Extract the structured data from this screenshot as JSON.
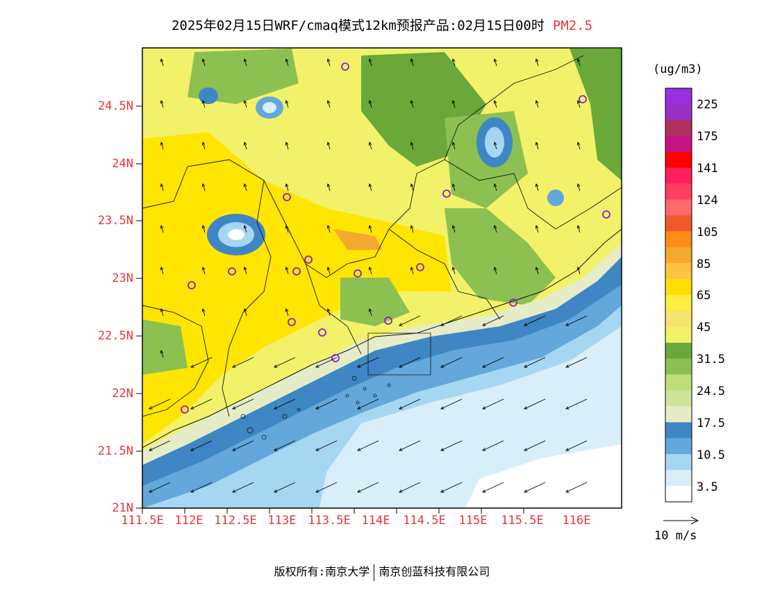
{
  "header": {
    "title": "2025年02月15日WRF/cmaq模式12km预报产品:02月15日00时",
    "pollutant": "PM2.5"
  },
  "axes": {
    "lat_labels": [
      "21N",
      "21.5N",
      "22N",
      "22.5N",
      "23N",
      "23.5N",
      "24N",
      "24.5N"
    ],
    "lon_labels": [
      "111.5E",
      "112E",
      "112.5E",
      "113E",
      "113.5E",
      "114E",
      "114.5E",
      "115E",
      "115.5E",
      "116E"
    ]
  },
  "colorbar": {
    "unit": "(ug/m3)",
    "labels": [
      "225",
      "175",
      "141",
      "124",
      "105",
      "85",
      "65",
      "45",
      "31.5",
      "24.5",
      "17.5",
      "10.5",
      "3.5"
    ],
    "colors": [
      "#9b2fe0",
      "#9b2fc8",
      "#b03060",
      "#c71585",
      "#ff0000",
      "#ff1f5a",
      "#ff3f5f",
      "#ff6a6a",
      "#f05a2a",
      "#ff8c1a",
      "#f5a830",
      "#fdc341",
      "#ffdf00",
      "#ffee44",
      "#f5e36f",
      "#f2f26a",
      "#6aa83a",
      "#8cc152",
      "#bede7a",
      "#cfe49a",
      "#e6ecc7",
      "#3f86c4",
      "#63a7db",
      "#a6d7f2",
      "#d8eef8",
      "#ffffff"
    ]
  },
  "wind_scale_label": "10 m/s",
  "footer": {
    "left": "版权所有:南京大学",
    "right": "南京创蓝科技有限公司"
  }
}
